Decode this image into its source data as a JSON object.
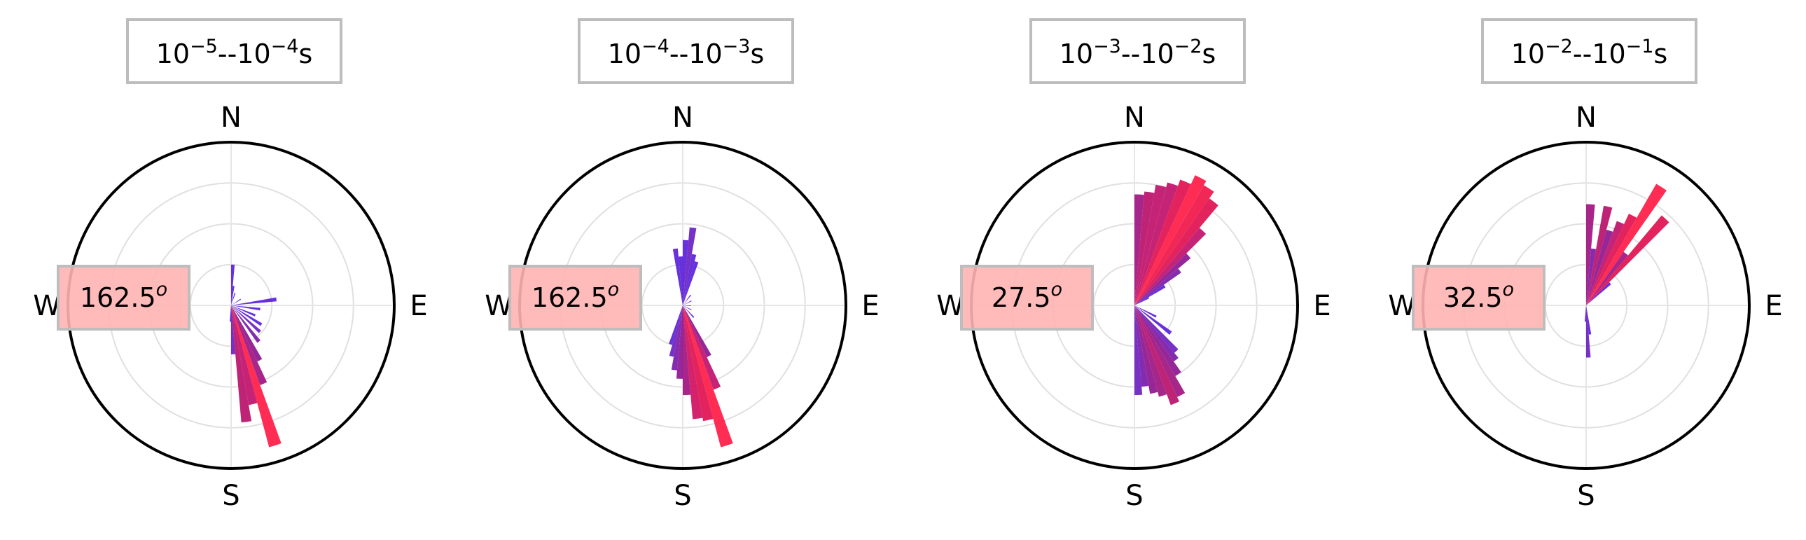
{
  "chart_data": [
    {
      "type": "polar-bar",
      "title": {
        "base1": "10",
        "exp1": "−5",
        "sep": "--",
        "base2": "10",
        "exp2": "−4",
        "unit": "s"
      },
      "direction_labels": {
        "n": "N",
        "e": "E",
        "s": "S",
        "w": "W"
      },
      "annotation": {
        "value": "162.5",
        "sup": "o"
      },
      "rlim": [
        0,
        1
      ],
      "grid": true,
      "bars": [
        {
          "theta": 2.5,
          "r": 0.25,
          "color": "#5a1fd8"
        },
        {
          "theta": 7.5,
          "r": 0.12,
          "color": "#5a1fd8"
        },
        {
          "theta": 17.5,
          "r": 0.08,
          "color": "#5a1fd8"
        },
        {
          "theta": 57.5,
          "r": 0.07,
          "color": "#5a1fd8"
        },
        {
          "theta": 82.5,
          "r": 0.28,
          "color": "#5a1fd8"
        },
        {
          "theta": 97.5,
          "r": 0.18,
          "color": "#5a1fd8"
        },
        {
          "theta": 112.5,
          "r": 0.16,
          "color": "#5a1fd8"
        },
        {
          "theta": 122.5,
          "r": 0.22,
          "color": "#5a1fd8"
        },
        {
          "theta": 132.5,
          "r": 0.24,
          "color": "#6a1fc0"
        },
        {
          "theta": 142.5,
          "r": 0.28,
          "color": "#7a1aa8"
        },
        {
          "theta": 152.5,
          "r": 0.38,
          "color": "#8c1590"
        },
        {
          "theta": 157.5,
          "r": 0.52,
          "color": "#a01480"
        },
        {
          "theta": 162.5,
          "r": 0.9,
          "color": "#ff1a45"
        },
        {
          "theta": 167.5,
          "r": 0.62,
          "color": "#c0106a"
        },
        {
          "theta": 172.5,
          "r": 0.72,
          "color": "#b8106a"
        },
        {
          "theta": 177.5,
          "r": 0.3,
          "color": "#6a1fc0"
        },
        {
          "theta": 182.5,
          "r": 0.1,
          "color": "#5a1fd8"
        }
      ]
    },
    {
      "type": "polar-bar",
      "title": {
        "base1": "10",
        "exp1": "−4",
        "sep": "--",
        "base2": "10",
        "exp2": "−3",
        "unit": "s"
      },
      "direction_labels": {
        "n": "N",
        "e": "E",
        "s": "S",
        "w": "W"
      },
      "annotation": {
        "value": "162.5",
        "sup": "o"
      },
      "rlim": [
        0,
        1
      ],
      "grid": true,
      "bars": [
        {
          "theta": 2.5,
          "r": 0.4,
          "color": "#5a1fd8"
        },
        {
          "theta": 7.5,
          "r": 0.48,
          "color": "#6a1fc0"
        },
        {
          "theta": 12.5,
          "r": 0.32,
          "color": "#5a1fd8"
        },
        {
          "theta": 17.5,
          "r": 0.28,
          "color": "#5a1fd8"
        },
        {
          "theta": 37.5,
          "r": 0.08,
          "color": "#5a1fd8"
        },
        {
          "theta": 62.5,
          "r": 0.06,
          "color": "#5a1fd8"
        },
        {
          "theta": 92.5,
          "r": 0.05,
          "color": "#5a1fd8"
        },
        {
          "theta": 117.5,
          "r": 0.06,
          "color": "#5a1fd8"
        },
        {
          "theta": 137.5,
          "r": 0.1,
          "color": "#5a1fd8"
        },
        {
          "theta": 152.5,
          "r": 0.35,
          "color": "#8c1590"
        },
        {
          "theta": 157.5,
          "r": 0.55,
          "color": "#c0106a"
        },
        {
          "theta": 162.5,
          "r": 0.9,
          "color": "#ff1a45"
        },
        {
          "theta": 167.5,
          "r": 0.72,
          "color": "#e0104f"
        },
        {
          "theta": 172.5,
          "r": 0.7,
          "color": "#d01060"
        },
        {
          "theta": 177.5,
          "r": 0.55,
          "color": "#a01480"
        },
        {
          "theta": 182.5,
          "r": 0.45,
          "color": "#8c1590"
        },
        {
          "theta": 187.5,
          "r": 0.4,
          "color": "#7a1aa8"
        },
        {
          "theta": 192.5,
          "r": 0.32,
          "color": "#6a1fc0"
        },
        {
          "theta": 197.5,
          "r": 0.25,
          "color": "#5a1fd8"
        },
        {
          "theta": 352.5,
          "r": 0.35,
          "color": "#5a1fd8"
        },
        {
          "theta": 357.5,
          "r": 0.3,
          "color": "#5a1fd8"
        }
      ]
    },
    {
      "type": "polar-bar",
      "title": {
        "base1": "10",
        "exp1": "−3",
        "sep": "--",
        "base2": "10",
        "exp2": "−2",
        "unit": "s"
      },
      "direction_labels": {
        "n": "N",
        "e": "E",
        "s": "S",
        "w": "W"
      },
      "annotation": {
        "value": "27.5",
        "sup": "o"
      },
      "rlim": [
        0,
        1
      ],
      "grid": true,
      "bars": [
        {
          "theta": 2.5,
          "r": 0.68,
          "color": "#a01480"
        },
        {
          "theta": 7.5,
          "r": 0.7,
          "color": "#b8106a"
        },
        {
          "theta": 12.5,
          "r": 0.75,
          "color": "#c0106a"
        },
        {
          "theta": 17.5,
          "r": 0.78,
          "color": "#c0106a"
        },
        {
          "theta": 22.5,
          "r": 0.82,
          "color": "#e0104f"
        },
        {
          "theta": 27.5,
          "r": 0.88,
          "color": "#ff1a45"
        },
        {
          "theta": 32.5,
          "r": 0.85,
          "color": "#f01548"
        },
        {
          "theta": 37.5,
          "r": 0.8,
          "color": "#e0104f"
        },
        {
          "theta": 42.5,
          "r": 0.62,
          "color": "#c0106a"
        },
        {
          "theta": 47.5,
          "r": 0.45,
          "color": "#8c1590"
        },
        {
          "theta": 52.5,
          "r": 0.35,
          "color": "#7a1aa8"
        },
        {
          "theta": 57.5,
          "r": 0.22,
          "color": "#5a1fd8"
        },
        {
          "theta": 62.5,
          "r": 0.1,
          "color": "#5a1fd8"
        },
        {
          "theta": 117.5,
          "r": 0.15,
          "color": "#5a1fd8"
        },
        {
          "theta": 127.5,
          "r": 0.28,
          "color": "#5a1fd8"
        },
        {
          "theta": 137.5,
          "r": 0.38,
          "color": "#6a1fc0"
        },
        {
          "theta": 142.5,
          "r": 0.42,
          "color": "#7a1aa8"
        },
        {
          "theta": 147.5,
          "r": 0.5,
          "color": "#8c1590"
        },
        {
          "theta": 152.5,
          "r": 0.62,
          "color": "#a01480"
        },
        {
          "theta": 157.5,
          "r": 0.65,
          "color": "#b8106a"
        },
        {
          "theta": 162.5,
          "r": 0.58,
          "color": "#a01480"
        },
        {
          "theta": 167.5,
          "r": 0.55,
          "color": "#8c1590"
        },
        {
          "theta": 172.5,
          "r": 0.5,
          "color": "#7a1aa8"
        },
        {
          "theta": 177.5,
          "r": 0.55,
          "color": "#6a1fc0"
        }
      ]
    },
    {
      "type": "polar-bar",
      "title": {
        "base1": "10",
        "exp1": "−2",
        "sep": "--",
        "base2": "10",
        "exp2": "−1",
        "unit": "s"
      },
      "direction_labels": {
        "n": "N",
        "e": "E",
        "s": "S",
        "w": "W"
      },
      "annotation": {
        "value": "32.5",
        "sup": "o"
      },
      "rlim": [
        0,
        1
      ],
      "grid": true,
      "bars": [
        {
          "theta": 2.5,
          "r": 0.62,
          "color": "#a01480"
        },
        {
          "theta": 7.5,
          "r": 0.35,
          "color": "#7a1aa8"
        },
        {
          "theta": 12.5,
          "r": 0.62,
          "color": "#b8106a"
        },
        {
          "theta": 17.5,
          "r": 0.48,
          "color": "#8c1590"
        },
        {
          "theta": 22.5,
          "r": 0.55,
          "color": "#c0106a"
        },
        {
          "theta": 27.5,
          "r": 0.62,
          "color": "#e0104f"
        },
        {
          "theta": 32.5,
          "r": 0.86,
          "color": "#ff1a45"
        },
        {
          "theta": 37.5,
          "r": 0.4,
          "color": "#a01480"
        },
        {
          "theta": 42.5,
          "r": 0.72,
          "color": "#e0104f"
        },
        {
          "theta": 47.5,
          "r": 0.2,
          "color": "#5a1fd8"
        },
        {
          "theta": 172.5,
          "r": 0.18,
          "color": "#5a1fd8"
        },
        {
          "theta": 177.5,
          "r": 0.32,
          "color": "#6a1fc0"
        },
        {
          "theta": 182.5,
          "r": 0.1,
          "color": "#5a1fd8"
        }
      ]
    }
  ]
}
